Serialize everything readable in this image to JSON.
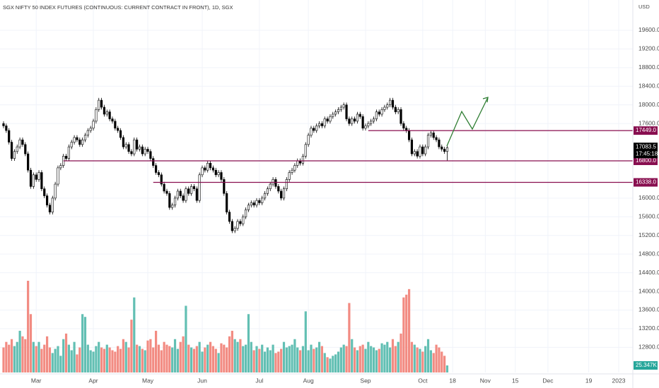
{
  "chart_data": {
    "type": "candlestick",
    "title": "SGX NIFTY 50 INDEX FUTURES (CONTINUOUS: CURRENT CONTRACT IN FRONT), 1D, SGX",
    "currency": "USD",
    "xlim": [
      -1.3,
      231.2
    ],
    "xticks": [
      {
        "value": 12,
        "label": "Mar"
      },
      {
        "value": 33,
        "label": "Apr"
      },
      {
        "value": 53,
        "label": "May"
      },
      {
        "value": 73,
        "label": "Jun"
      },
      {
        "value": 94,
        "label": "Jul"
      },
      {
        "value": 112,
        "label": "Aug"
      },
      {
        "value": 133,
        "label": "Sep"
      },
      {
        "value": 154,
        "label": "Oct"
      },
      {
        "value": 165,
        "label": "18"
      },
      {
        "value": 177,
        "label": "Nov"
      },
      {
        "value": 188,
        "label": "15"
      },
      {
        "value": 200,
        "label": "Dec"
      },
      {
        "value": 215,
        "label": "19"
      },
      {
        "value": 226,
        "label": "2023"
      }
    ],
    "ylim": [
      12260,
      20250
    ],
    "yticks": [
      {
        "value": 19600,
        "label": "19600.0"
      },
      {
        "value": 19200,
        "label": "19200.0"
      },
      {
        "value": 18800,
        "label": "18800.0"
      },
      {
        "value": 18400,
        "label": "18400.0"
      },
      {
        "value": 18000,
        "label": "18000.0"
      },
      {
        "value": 17600,
        "label": "17600.0"
      },
      {
        "value": 16000,
        "label": "16000.0"
      },
      {
        "value": 15600,
        "label": "15600.0"
      },
      {
        "value": 15200,
        "label": "15200.0"
      },
      {
        "value": 14800,
        "label": "14800.0"
      },
      {
        "value": 14400,
        "label": "14400.0"
      },
      {
        "value": 14000,
        "label": "14000.0"
      },
      {
        "value": 13600,
        "label": "13600.0"
      },
      {
        "value": 13200,
        "label": "13200.0"
      },
      {
        "value": 12800,
        "label": "12800.0"
      }
    ],
    "grid": true,
    "open": [
      17600,
      17550,
      17450,
      17200,
      16850,
      17000,
      17100,
      17250,
      17150,
      16950,
      16600,
      16250,
      16500,
      16400,
      16550,
      16200,
      16050,
      15850,
      15700,
      16000,
      16300,
      16650,
      16700,
      16900,
      16850,
      17100,
      17200,
      17300,
      17250,
      17150,
      17250,
      17350,
      17450,
      17500,
      17650,
      17900,
      18100,
      17950,
      17800,
      17850,
      17700,
      17650,
      17500,
      17450,
      17300,
      17100,
      17150,
      17000,
      16950,
      17250,
      17050,
      17100,
      16950,
      17050,
      17000,
      16850,
      16700,
      16550,
      16500,
      16300,
      16150,
      16100,
      15800,
      15850,
      16000,
      16150,
      16050,
      15950,
      16200,
      16100,
      16250,
      16200,
      15950,
      16500,
      16650,
      16600,
      16750,
      16650,
      16600,
      16500,
      16550,
      16400,
      16100,
      15700,
      15500,
      15300,
      15350,
      15500,
      15450,
      15600,
      15750,
      15850,
      15900,
      15850,
      15950,
      15900,
      16000,
      16100,
      16200,
      16300,
      16400,
      16250,
      16150,
      16000,
      16200,
      16400,
      16550,
      16600,
      16700,
      16800,
      16750,
      16900,
      17150,
      17350,
      17500,
      17450,
      17550,
      17600,
      17550,
      17700,
      17650,
      17750,
      17800,
      17850,
      17900,
      17950,
      18000,
      17700,
      17600,
      17700,
      17650,
      17800,
      17750,
      17500,
      17550,
      17600,
      17650,
      17700,
      17850,
      17800,
      17900,
      17950,
      18000,
      18100,
      17950,
      17850,
      17900,
      17600,
      17500,
      17450,
      17250,
      16950,
      17000,
      16900,
      17100,
      16950,
      17100,
      17350,
      17400,
      17300,
      17250,
      17100,
      17050,
      17000
    ],
    "high": [
      17650,
      17600,
      17500,
      17250,
      17050,
      17150,
      17300,
      17300,
      17200,
      17000,
      16650,
      16550,
      16550,
      16600,
      16600,
      16250,
      16100,
      15900,
      16050,
      16350,
      16700,
      16750,
      16950,
      16950,
      17150,
      17250,
      17350,
      17350,
      17300,
      17300,
      17400,
      17500,
      17550,
      17700,
      17950,
      18150,
      18150,
      18000,
      17900,
      17900,
      17750,
      17700,
      17550,
      17500,
      17350,
      17200,
      17200,
      17050,
      17300,
      17300,
      17150,
      17150,
      17100,
      17100,
      17050,
      16900,
      16750,
      16600,
      16550,
      16350,
      16200,
      16150,
      15900,
      16050,
      16200,
      16200,
      16100,
      16250,
      16250,
      16300,
      16300,
      16250,
      16550,
      16700,
      16700,
      16800,
      16800,
      16700,
      16650,
      16600,
      16600,
      16450,
      16150,
      15750,
      15550,
      15400,
      15550,
      15550,
      15650,
      15800,
      15900,
      15950,
      15950,
      16000,
      16000,
      16050,
      16150,
      16250,
      16350,
      16450,
      16450,
      16300,
      16200,
      16250,
      16450,
      16600,
      16650,
      16750,
      16850,
      16850,
      16950,
      17200,
      17400,
      17550,
      17550,
      17600,
      17650,
      17650,
      17750,
      17750,
      17800,
      17850,
      17900,
      17950,
      18000,
      18050,
      18050,
      17750,
      17750,
      17750,
      17850,
      17850,
      17800,
      17600,
      17650,
      17700,
      17750,
      17900,
      17900,
      17950,
      18000,
      18050,
      18150,
      18150,
      18000,
      17950,
      17950,
      17650,
      17550,
      17500,
      17300,
      17050,
      17050,
      17150,
      17150,
      17150,
      17400,
      17450,
      17450,
      17350,
      17300,
      17150,
      17100,
      17130
    ],
    "low": [
      17500,
      17400,
      17150,
      16800,
      16800,
      16950,
      17050,
      17100,
      16900,
      16550,
      16200,
      16200,
      16350,
      16350,
      16150,
      16000,
      15800,
      15650,
      15650,
      15950,
      16250,
      16600,
      16650,
      16800,
      16800,
      17050,
      17150,
      17200,
      17100,
      17100,
      17200,
      17300,
      17400,
      17450,
      17600,
      17850,
      17900,
      17750,
      17750,
      17650,
      17600,
      17450,
      17400,
      17250,
      17050,
      17050,
      16950,
      16900,
      16900,
      17000,
      17000,
      16900,
      16900,
      16950,
      16800,
      16650,
      16500,
      16450,
      16250,
      16100,
      16050,
      15750,
      15750,
      15800,
      15950,
      16000,
      15900,
      15900,
      16050,
      16050,
      16150,
      15900,
      15900,
      16450,
      16550,
      16550,
      16600,
      16550,
      16450,
      16450,
      16350,
      16050,
      15650,
      15450,
      15250,
      15250,
      15300,
      15400,
      15400,
      15550,
      15700,
      15800,
      15800,
      15800,
      15850,
      15850,
      15950,
      16050,
      16150,
      16250,
      16200,
      16100,
      15950,
      15950,
      16150,
      16350,
      16500,
      16550,
      16650,
      16700,
      16700,
      16850,
      17100,
      17300,
      17400,
      17400,
      17500,
      17500,
      17500,
      17600,
      17600,
      17700,
      17750,
      17800,
      17850,
      17900,
      17650,
      17550,
      17550,
      17600,
      17600,
      17700,
      17450,
      17450,
      17500,
      17550,
      17600,
      17650,
      17750,
      17750,
      17850,
      17900,
      17950,
      17900,
      17800,
      17800,
      17550,
      17450,
      17400,
      17200,
      16900,
      16900,
      16850,
      16850,
      16900,
      16900,
      17050,
      17300,
      17250,
      17200,
      17050,
      17000,
      16950,
      16800
    ],
    "close": [
      17550,
      17450,
      17200,
      16850,
      17000,
      17100,
      17250,
      17150,
      16950,
      16600,
      16250,
      16500,
      16400,
      16550,
      16200,
      16050,
      15850,
      15700,
      16000,
      16300,
      16650,
      16700,
      16900,
      16850,
      17100,
      17200,
      17300,
      17250,
      17150,
      17250,
      17350,
      17450,
      17500,
      17650,
      17900,
      18100,
      17950,
      17800,
      17850,
      17700,
      17650,
      17500,
      17450,
      17300,
      17100,
      17150,
      17000,
      16950,
      17250,
      17050,
      17100,
      16950,
      17050,
      17000,
      16850,
      16700,
      16550,
      16500,
      16300,
      16150,
      16100,
      15800,
      15850,
      16000,
      16150,
      16050,
      15950,
      16200,
      16100,
      16250,
      16200,
      15950,
      16500,
      16650,
      16600,
      16750,
      16650,
      16600,
      16500,
      16550,
      16400,
      16100,
      15700,
      15500,
      15300,
      15350,
      15500,
      15450,
      15600,
      15750,
      15850,
      15900,
      15850,
      15950,
      15900,
      16000,
      16100,
      16200,
      16300,
      16400,
      16250,
      16150,
      16000,
      16200,
      16400,
      16550,
      16600,
      16700,
      16800,
      16750,
      16900,
      17150,
      17350,
      17500,
      17450,
      17550,
      17600,
      17550,
      17700,
      17650,
      17750,
      17800,
      17850,
      17900,
      17950,
      18000,
      17700,
      17600,
      17700,
      17650,
      17800,
      17750,
      17500,
      17550,
      17600,
      17650,
      17700,
      17850,
      17800,
      17900,
      17950,
      18000,
      18100,
      17950,
      17850,
      17900,
      17600,
      17500,
      17450,
      17250,
      16950,
      17000,
      16900,
      17100,
      16950,
      17100,
      17350,
      17400,
      17300,
      17250,
      17100,
      17050,
      17000,
      17083.5
    ],
    "volume": {
      "ylim": [
        0,
        330
      ],
      "values": [
        90,
        110,
        100,
        120,
        95,
        110,
        150,
        130,
        120,
        330,
        210,
        110,
        95,
        110,
        85,
        100,
        130,
        90,
        70,
        85,
        95,
        60,
        120,
        140,
        100,
        80,
        110,
        65,
        90,
        210,
        200,
        100,
        80,
        75,
        95,
        110,
        90,
        85,
        100,
        90,
        80,
        75,
        95,
        85,
        120,
        110,
        90,
        190,
        270,
        100,
        95,
        85,
        80,
        115,
        120,
        90,
        150,
        100,
        80,
        110,
        100,
        95,
        90,
        120,
        85,
        110,
        130,
        240,
        100,
        90,
        85,
        95,
        110,
        75,
        90,
        100,
        110,
        95,
        85,
        70,
        105,
        100,
        90,
        130,
        150,
        120,
        110,
        120,
        95,
        100,
        210,
        110,
        80,
        95,
        85,
        100,
        75,
        90,
        80,
        100,
        70,
        75,
        85,
        110,
        90,
        95,
        100,
        120,
        90,
        80,
        95,
        220,
        80,
        100,
        85,
        90,
        110,
        95,
        70,
        55,
        50,
        60,
        65,
        75,
        90,
        100,
        95,
        250,
        120,
        90,
        80,
        95,
        100,
        85,
        110,
        95,
        90,
        80,
        85,
        105,
        100,
        110,
        90,
        120,
        95,
        110,
        140,
        270,
        280,
        300,
        110,
        100,
        90,
        85,
        75,
        95,
        120,
        80,
        70,
        100,
        90,
        75,
        60,
        25.347
      ]
    },
    "levels": [
      {
        "value": 17449,
        "label": "17449.0",
        "x_start": 134
      },
      {
        "value": 16800,
        "label": "16800.0",
        "x_start": 22
      },
      {
        "value": 16338,
        "label": "16338.0",
        "x_start": 55
      }
    ],
    "last_price": 17083.5,
    "last_time": "17:45:18",
    "last_volume": {
      "value": 25.347,
      "label": "25.347K"
    },
    "colors": {
      "up_body": "#ffffff",
      "down_body": "#000000",
      "wick": "#000000",
      "volume_up": "#62bfb3",
      "volume_down": "#f28b82",
      "level": "#880e4f",
      "last_volume": "#26a69a",
      "last_price": "#000000"
    }
  }
}
